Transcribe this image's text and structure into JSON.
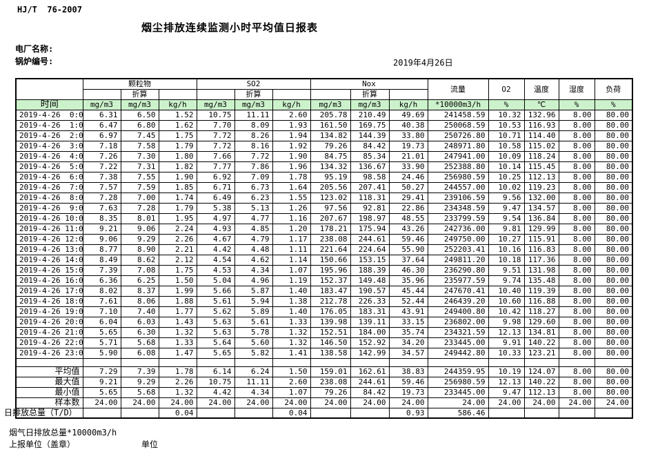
{
  "page": {
    "standard": "HJ/T  76-2007",
    "title": "烟尘排放连续监测小时平均值日报表",
    "plant_label": "电厂名称:",
    "boiler_label": "锅炉编号:",
    "date": "2019年4月26日"
  },
  "colors": {
    "header_bg": "#ccf2cc"
  },
  "table": {
    "time_header": "时间",
    "subheader": "折算",
    "groups": {
      "pm": "颗粒物",
      "so2": "SO2",
      "nox": "Nox",
      "flow": "流量",
      "o2": "O2",
      "temp": "温度",
      "humidity": "湿度",
      "load": "负荷"
    },
    "units": [
      "mg/m3",
      "mg/m3",
      "kg/h",
      "mg/m3",
      "mg/m3",
      "kg/h",
      "mg/m3",
      "mg/m3",
      "kg/h",
      "*10000m3/h",
      "%",
      "℃",
      "%",
      "%"
    ],
    "rows": [
      {
        "time": "2019-4-26  0:00",
        "values": [
          "6.31",
          "6.50",
          "1.52",
          "10.75",
          "11.11",
          "2.60",
          "205.78",
          "210.49",
          "49.69",
          "241458.59",
          "10.32",
          "132.96",
          "8.00",
          "80.00"
        ]
      },
      {
        "time": "2019-4-26  1:00",
        "values": [
          "6.47",
          "6.80",
          "1.62",
          "7.70",
          "8.09",
          "1.93",
          "161.50",
          "169.75",
          "40.38",
          "250068.59",
          "10.53",
          "116.93",
          "8.00",
          "80.00"
        ]
      },
      {
        "time": "2019-4-26  2:00",
        "values": [
          "6.97",
          "7.45",
          "1.75",
          "7.72",
          "8.26",
          "1.94",
          "134.82",
          "144.39",
          "33.80",
          "250726.80",
          "10.71",
          "114.40",
          "8.00",
          "80.00"
        ]
      },
      {
        "time": "2019-4-26  3:00",
        "values": [
          "7.18",
          "7.58",
          "1.79",
          "7.72",
          "8.16",
          "1.92",
          "79.26",
          "84.42",
          "19.73",
          "248971.80",
          "10.58",
          "115.02",
          "8.00",
          "80.00"
        ]
      },
      {
        "time": "2019-4-26  4:00",
        "values": [
          "7.26",
          "7.30",
          "1.80",
          "7.66",
          "7.72",
          "1.90",
          "84.75",
          "85.34",
          "21.01",
          "247941.00",
          "10.09",
          "118.24",
          "8.00",
          "80.00"
        ]
      },
      {
        "time": "2019-4-26  5:00",
        "values": [
          "7.22",
          "7.31",
          "1.82",
          "7.77",
          "7.86",
          "1.96",
          "134.32",
          "136.67",
          "33.90",
          "252388.80",
          "10.14",
          "115.45",
          "8.00",
          "80.00"
        ]
      },
      {
        "time": "2019-4-26  6:00",
        "values": [
          "7.38",
          "7.55",
          "1.90",
          "6.92",
          "7.09",
          "1.78",
          "95.19",
          "98.58",
          "24.46",
          "256980.59",
          "10.25",
          "112.13",
          "8.00",
          "80.00"
        ]
      },
      {
        "time": "2019-4-26  7:00",
        "values": [
          "7.57",
          "7.59",
          "1.85",
          "6.71",
          "6.73",
          "1.64",
          "205.56",
          "207.41",
          "50.27",
          "244557.00",
          "10.02",
          "119.23",
          "8.00",
          "80.00"
        ]
      },
      {
        "time": "2019-4-26  8:00",
        "values": [
          "7.28",
          "7.00",
          "1.74",
          "6.49",
          "6.23",
          "1.55",
          "123.02",
          "118.31",
          "29.41",
          "239106.59",
          "9.56",
          "132.00",
          "8.00",
          "80.00"
        ]
      },
      {
        "time": "2019-4-26  9:00",
        "values": [
          "7.63",
          "7.28",
          "1.79",
          "5.38",
          "5.13",
          "1.26",
          "97.56",
          "92.81",
          "22.86",
          "234348.59",
          "9.47",
          "134.57",
          "8.00",
          "80.00"
        ]
      },
      {
        "time": "2019-4-26 10:00",
        "values": [
          "8.35",
          "8.01",
          "1.95",
          "4.97",
          "4.77",
          "1.16",
          "207.67",
          "198.97",
          "48.55",
          "233799.59",
          "9.54",
          "136.84",
          "8.00",
          "80.00"
        ]
      },
      {
        "time": "2019-4-26 11:00",
        "values": [
          "9.21",
          "9.06",
          "2.24",
          "4.93",
          "4.85",
          "1.20",
          "178.21",
          "175.94",
          "43.26",
          "242736.00",
          "9.81",
          "129.99",
          "8.00",
          "80.00"
        ]
      },
      {
        "time": "2019-4-26 12:00",
        "values": [
          "9.06",
          "9.29",
          "2.26",
          "4.67",
          "4.79",
          "1.17",
          "238.08",
          "244.61",
          "59.46",
          "249750.00",
          "10.27",
          "115.91",
          "8.00",
          "80.00"
        ]
      },
      {
        "time": "2019-4-26 13:00",
        "values": [
          "8.77",
          "8.90",
          "2.21",
          "4.42",
          "4.48",
          "1.11",
          "221.64",
          "224.64",
          "55.90",
          "252203.41",
          "10.16",
          "116.83",
          "8.00",
          "80.00"
        ]
      },
      {
        "time": "2019-4-26 14:00",
        "values": [
          "8.49",
          "8.62",
          "2.12",
          "4.54",
          "4.62",
          "1.14",
          "150.66",
          "153.15",
          "37.64",
          "249811.20",
          "10.18",
          "117.36",
          "8.00",
          "80.00"
        ]
      },
      {
        "time": "2019-4-26 15:00",
        "values": [
          "7.39",
          "7.08",
          "1.75",
          "4.53",
          "4.34",
          "1.07",
          "195.96",
          "188.39",
          "46.30",
          "236290.80",
          "9.51",
          "131.98",
          "8.00",
          "80.00"
        ]
      },
      {
        "time": "2019-4-26 16:00",
        "values": [
          "6.36",
          "6.25",
          "1.50",
          "5.04",
          "4.96",
          "1.19",
          "152.37",
          "149.48",
          "35.96",
          "235977.59",
          "9.74",
          "135.48",
          "8.00",
          "80.00"
        ]
      },
      {
        "time": "2019-4-26 17:00",
        "values": [
          "8.02",
          "8.37",
          "1.99",
          "5.66",
          "5.87",
          "1.40",
          "183.47",
          "190.57",
          "45.44",
          "247670.41",
          "10.40",
          "119.39",
          "8.00",
          "80.00"
        ]
      },
      {
        "time": "2019-4-26 18:00",
        "values": [
          "7.61",
          "8.06",
          "1.88",
          "5.61",
          "5.94",
          "1.38",
          "212.78",
          "226.33",
          "52.44",
          "246439.20",
          "10.60",
          "116.88",
          "8.00",
          "80.00"
        ]
      },
      {
        "time": "2019-4-26 19:00",
        "values": [
          "7.10",
          "7.40",
          "1.77",
          "5.62",
          "5.89",
          "1.40",
          "176.05",
          "183.31",
          "43.91",
          "249400.80",
          "10.42",
          "118.27",
          "8.00",
          "80.00"
        ]
      },
      {
        "time": "2019-4-26 20:00",
        "values": [
          "6.04",
          "6.03",
          "1.43",
          "5.63",
          "5.61",
          "1.33",
          "139.98",
          "139.11",
          "33.15",
          "236802.00",
          "9.98",
          "129.60",
          "8.00",
          "80.00"
        ]
      },
      {
        "time": "2019-4-26 21:00",
        "values": [
          "5.65",
          "6.30",
          "1.32",
          "5.63",
          "5.78",
          "1.32",
          "152.51",
          "184.00",
          "35.74",
          "234321.59",
          "12.13",
          "134.81",
          "8.00",
          "80.00"
        ]
      },
      {
        "time": "2019-4-26 22:00",
        "values": [
          "5.71",
          "5.68",
          "1.33",
          "5.64",
          "5.60",
          "1.32",
          "146.50",
          "152.92",
          "34.20",
          "233445.00",
          "9.91",
          "140.22",
          "8.00",
          "80.00"
        ]
      },
      {
        "time": "2019-4-26 23:00",
        "values": [
          "5.90",
          "6.08",
          "1.47",
          "5.65",
          "5.82",
          "1.41",
          "138.58",
          "142.99",
          "34.57",
          "249442.80",
          "10.33",
          "123.21",
          "8.00",
          "80.00"
        ]
      }
    ],
    "summary": [
      {
        "label": "平均值",
        "values": [
          "7.29",
          "7.39",
          "1.78",
          "6.14",
          "6.24",
          "1.50",
          "159.01",
          "162.61",
          "38.83",
          "244359.95",
          "10.19",
          "124.07",
          "8.00",
          "80.00"
        ]
      },
      {
        "label": "最大值",
        "values": [
          "9.21",
          "9.29",
          "2.26",
          "10.75",
          "11.11",
          "2.60",
          "238.08",
          "244.61",
          "59.46",
          "256980.59",
          "12.13",
          "140.22",
          "8.00",
          "80.00"
        ]
      },
      {
        "label": "最小值",
        "values": [
          "5.65",
          "5.68",
          "1.32",
          "4.42",
          "4.34",
          "1.07",
          "79.26",
          "84.42",
          "19.73",
          "233445.00",
          "9.47",
          "112.13",
          "8.00",
          "80.00"
        ]
      },
      {
        "label": "样本数",
        "values": [
          "24.00",
          "24.00",
          "24.00",
          "24.00",
          "24.00",
          "24.00",
          "24.00",
          "24.00",
          "24.00",
          "24.00",
          "24.00",
          "24.00",
          "24.00",
          "24.00"
        ]
      },
      {
        "label": "日排放总量（T/D）",
        "values": [
          "",
          "",
          "0.04",
          "",
          "",
          "0.04",
          "",
          "",
          "0.93",
          "586.46",
          "",
          "",
          "",
          ""
        ]
      }
    ]
  },
  "footer": {
    "gas_total_label": "烟气日排放总量*10000m3/h",
    "report_unit_label": "上报单位（盖章）",
    "unit_label": "单位"
  }
}
